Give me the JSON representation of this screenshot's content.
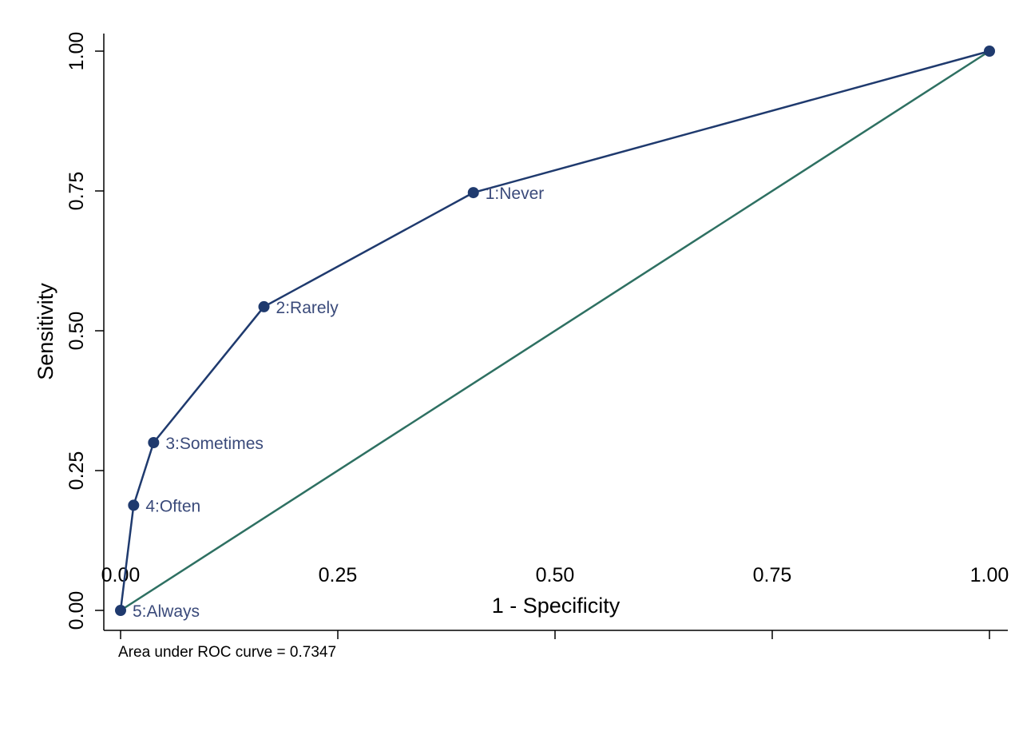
{
  "chart_data": {
    "type": "line",
    "title": "",
    "xlabel": "1 - Specificity",
    "ylabel": "Sensitivity",
    "xlim": [
      0,
      1
    ],
    "ylim": [
      0,
      1
    ],
    "x_ticks": [
      "0.00",
      "0.25",
      "0.50",
      "0.75",
      "1.00"
    ],
    "y_ticks": [
      "0.00",
      "0.25",
      "0.50",
      "0.75",
      "1.00"
    ],
    "grid": false,
    "note": "Area under ROC curve = 0.7347",
    "series": [
      {
        "type": "line",
        "color": "#1f3a6e",
        "markers": true,
        "points": [
          {
            "x": 0.0,
            "y": 0.0,
            "label": "5:Always"
          },
          {
            "x": 0.015,
            "y": 0.188,
            "label": "4:Often"
          },
          {
            "x": 0.038,
            "y": 0.3,
            "label": "3:Sometimes"
          },
          {
            "x": 0.165,
            "y": 0.543,
            "label": "2:Rarely"
          },
          {
            "x": 0.406,
            "y": 0.747,
            "label": "1:Never"
          },
          {
            "x": 1.0,
            "y": 1.0,
            "label": ""
          }
        ]
      },
      {
        "type": "line",
        "color": "#2e7062",
        "markers": false,
        "points": [
          {
            "x": 0.0,
            "y": 0.0
          },
          {
            "x": 1.0,
            "y": 1.0
          }
        ]
      }
    ],
    "label_color": "#3a4a7a"
  }
}
